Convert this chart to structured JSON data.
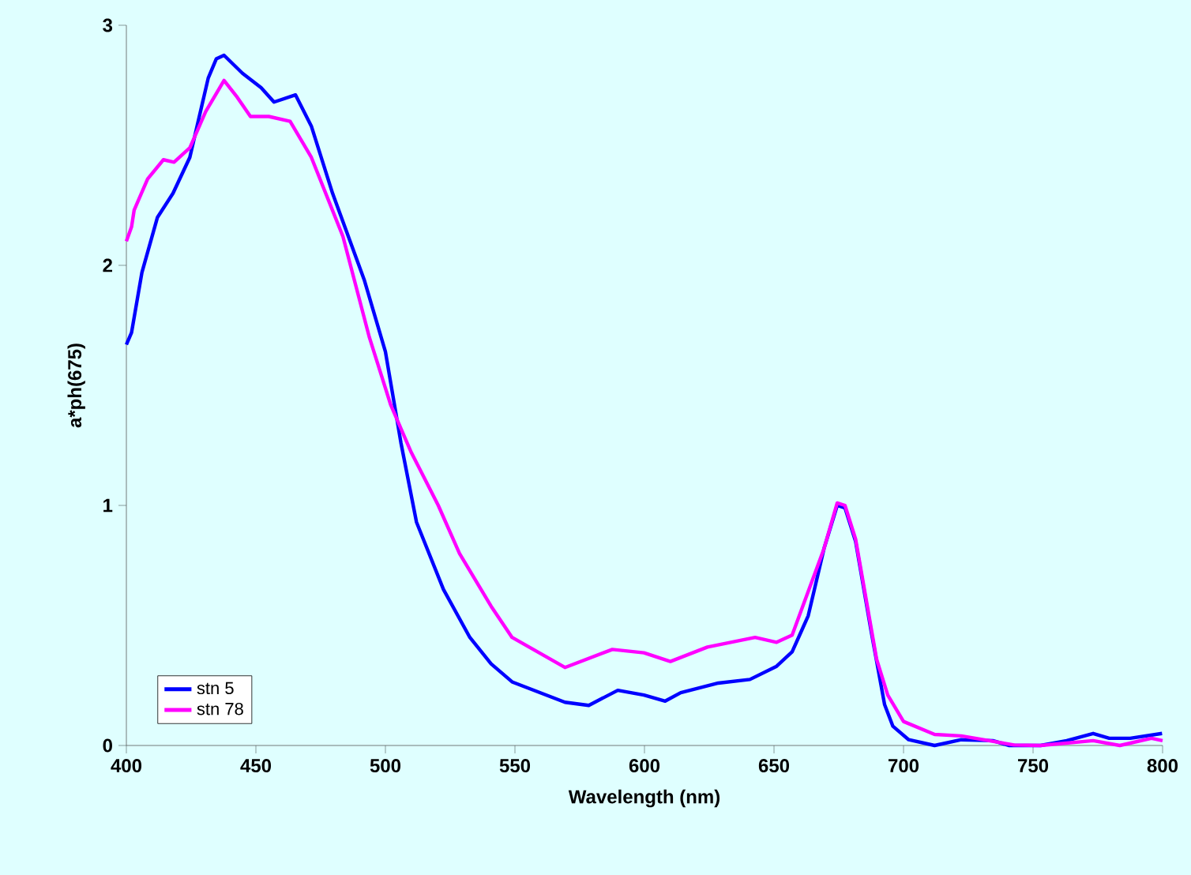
{
  "chart_data": {
    "type": "line",
    "xlabel": "Wavelength (nm)",
    "ylabel": "a*ph(675)",
    "xlim": [
      400,
      800
    ],
    "ylim": [
      0,
      3
    ],
    "xticks": [
      400,
      450,
      500,
      550,
      600,
      650,
      700,
      750,
      800
    ],
    "yticks": [
      0,
      1,
      2,
      3
    ],
    "grid": false,
    "legend": "bottom left",
    "marker": "none",
    "line_style": "solid",
    "series": [
      {
        "name": "stn 5",
        "color": "#0000ff",
        "x": [
          400,
          402,
          406,
          412,
          418,
          424.5,
          431.6,
          434.7,
          437.7,
          444.8,
          452,
          457,
          465.3,
          471.4,
          479.6,
          491.8,
          500,
          506,
          512,
          522.4,
          532.6,
          540.8,
          548.9,
          569.3,
          578.5,
          589.7,
          599.8,
          608,
          614,
          628.5,
          640.7,
          651,
          657,
          663.2,
          669.3,
          674.4,
          677.4,
          681.5,
          687.6,
          692.7,
          695.9,
          702,
          712,
          722.3,
          734.5,
          740.6,
          752.9,
          763,
          773.2,
          779.4,
          787.5,
          799.8
        ],
        "values": [
          1.67,
          1.72,
          1.97,
          2.2,
          2.3,
          2.45,
          2.78,
          2.86,
          2.875,
          2.8,
          2.74,
          2.68,
          2.71,
          2.58,
          2.3,
          1.94,
          1.64,
          1.26,
          0.93,
          0.65,
          0.45,
          0.34,
          0.265,
          0.18,
          0.167,
          0.23,
          0.21,
          0.185,
          0.22,
          0.26,
          0.275,
          0.33,
          0.39,
          0.54,
          0.82,
          1.0,
          0.99,
          0.85,
          0.47,
          0.17,
          0.08,
          0.024,
          0,
          0.024,
          0.02,
          0,
          0,
          0.02,
          0.05,
          0.03,
          0.03,
          0.05
        ]
      },
      {
        "name": "stn 78",
        "color": "#ff00ff",
        "x": [
          400,
          402,
          403,
          408.2,
          414.3,
          418.4,
          424.5,
          430.6,
          437.7,
          442.8,
          447.9,
          455,
          463.2,
          471.4,
          483.6,
          493.8,
          502,
          510,
          520.4,
          528.6,
          540.8,
          548.9,
          569.3,
          587.6,
          599.8,
          610,
          624.3,
          642.7,
          651,
          657,
          669.3,
          674.4,
          677.4,
          681.5,
          689.6,
          693.9,
          700,
          712,
          722.3,
          742.7,
          752.9,
          773.2,
          783.5,
          795.7,
          800
        ],
        "values": [
          2.1,
          2.16,
          2.23,
          2.36,
          2.44,
          2.43,
          2.49,
          2.64,
          2.77,
          2.7,
          2.62,
          2.62,
          2.6,
          2.45,
          2.12,
          1.7,
          1.42,
          1.22,
          1.0,
          0.8,
          0.58,
          0.45,
          0.325,
          0.4,
          0.386,
          0.35,
          0.41,
          0.45,
          0.43,
          0.46,
          0.82,
          1.01,
          1.0,
          0.86,
          0.36,
          0.21,
          0.1,
          0.046,
          0.04,
          0.002,
          0,
          0.02,
          0,
          0.03,
          0.02
        ]
      }
    ]
  }
}
